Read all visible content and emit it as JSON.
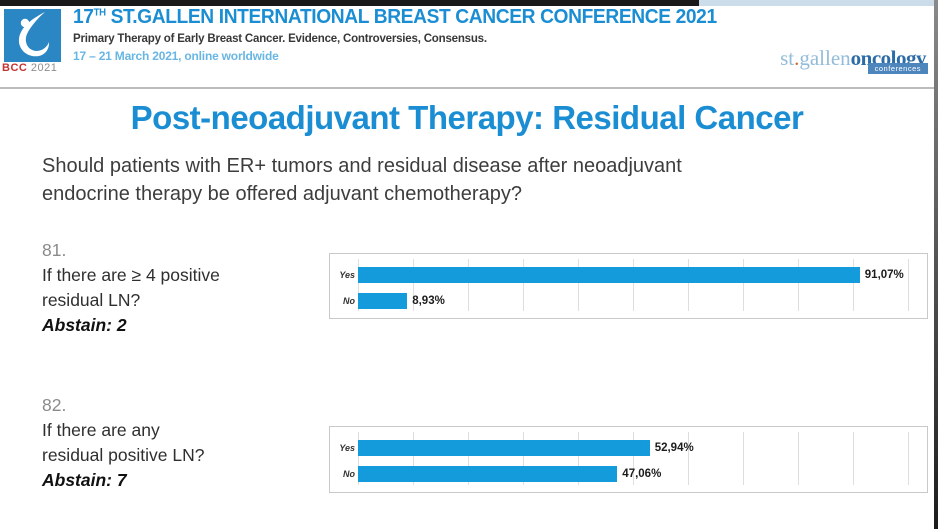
{
  "header": {
    "badge": {
      "org": "BCC",
      "year": "2021"
    },
    "title_prefix": "17",
    "title_sup": "TH",
    "title_rest": " ST.GALLEN INTERNATIONAL BREAST CANCER CONFERENCE 2021",
    "subtitle": "Primary Therapy of Early Breast Cancer. Evidence, Controversies, Consensus.",
    "date_line": "17 – 21 March 2021, online worldwide",
    "right_logo": {
      "light": "st",
      "dot": ".",
      "light2": "gallen",
      "dark": "oncology",
      "box": "conferences"
    }
  },
  "slide": {
    "title": "Post-neoadjuvant Therapy: Residual Cancer",
    "question_line1": "Should patients with ER+ tumors and residual disease after neoadjuvant",
    "question_line2": "endocrine therapy be offered adjuvant chemotherapy?"
  },
  "polls": [
    {
      "number": "81.",
      "question_line1": "If there are ≥ 4 positive",
      "question_line2": "residual LN?",
      "abstain": "Abstain: 2"
    },
    {
      "number": "82.",
      "question_line1": "If there are any",
      "question_line2": "residual positive LN?",
      "abstain": "Abstain: 7"
    }
  ],
  "chart_data": [
    {
      "type": "bar",
      "orientation": "horizontal",
      "title": "Poll 81 — If there are ≥ 4 positive residual LN?",
      "categories": [
        "Yes",
        "No"
      ],
      "values": [
        91.07,
        8.93
      ],
      "value_labels": [
        "91,07%",
        "8,93%"
      ],
      "xlim": [
        0,
        100
      ],
      "gridline_step": 10,
      "grid": true,
      "legend": false
    },
    {
      "type": "bar",
      "orientation": "horizontal",
      "title": "Poll 82 — If there are any residual positive LN?",
      "categories": [
        "Yes",
        "No"
      ],
      "values": [
        52.94,
        47.06
      ],
      "value_labels": [
        "52,94%",
        "47,06%"
      ],
      "xlim": [
        0,
        100
      ],
      "gridline_step": 10,
      "grid": true,
      "legend": false
    }
  ],
  "colors": {
    "accent_blue": "#1b8ed3",
    "bar_blue": "#149bdc",
    "date_blue": "#68b6e3",
    "logo_blue": "#2b86c4"
  }
}
